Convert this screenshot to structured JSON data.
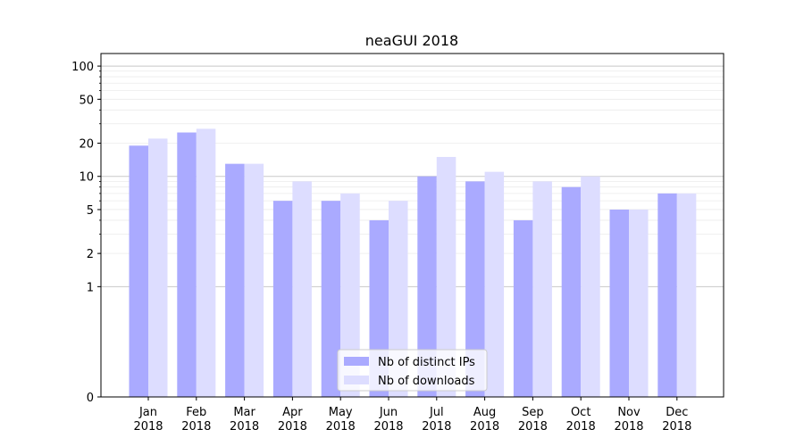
{
  "chart_data": {
    "type": "bar",
    "title": "neaGUI 2018",
    "xlabel": "",
    "ylabel": "",
    "y_scale": "symlog",
    "ylim": [
      0,
      130
    ],
    "y_ticks": [
      {
        "value": 0,
        "label": "0"
      },
      {
        "value": 1,
        "label": "1"
      },
      {
        "value": 2,
        "label": "2"
      },
      {
        "value": 5,
        "label": "5"
      },
      {
        "value": 10,
        "label": "10"
      },
      {
        "value": 20,
        "label": "20"
      },
      {
        "value": 50,
        "label": "50"
      },
      {
        "value": 100,
        "label": "100"
      }
    ],
    "categories": [
      {
        "month": "Jan",
        "year": "2018"
      },
      {
        "month": "Feb",
        "year": "2018"
      },
      {
        "month": "Mar",
        "year": "2018"
      },
      {
        "month": "Apr",
        "year": "2018"
      },
      {
        "month": "May",
        "year": "2018"
      },
      {
        "month": "Jun",
        "year": "2018"
      },
      {
        "month": "Jul",
        "year": "2018"
      },
      {
        "month": "Aug",
        "year": "2018"
      },
      {
        "month": "Sep",
        "year": "2018"
      },
      {
        "month": "Oct",
        "year": "2018"
      },
      {
        "month": "Nov",
        "year": "2018"
      },
      {
        "month": "Dec",
        "year": "2018"
      }
    ],
    "series": [
      {
        "name": "Nb of distinct IPs",
        "color": "#aaaaff",
        "values": [
          19,
          25,
          13,
          6,
          6,
          4,
          10,
          9,
          4,
          8,
          5,
          7
        ]
      },
      {
        "name": "Nb of downloads",
        "color": "#ddddff",
        "values": [
          22,
          27,
          13,
          9,
          7,
          6,
          15,
          11,
          9,
          10,
          5,
          7
        ]
      }
    ],
    "grid": true,
    "legend": "lower-center"
  }
}
